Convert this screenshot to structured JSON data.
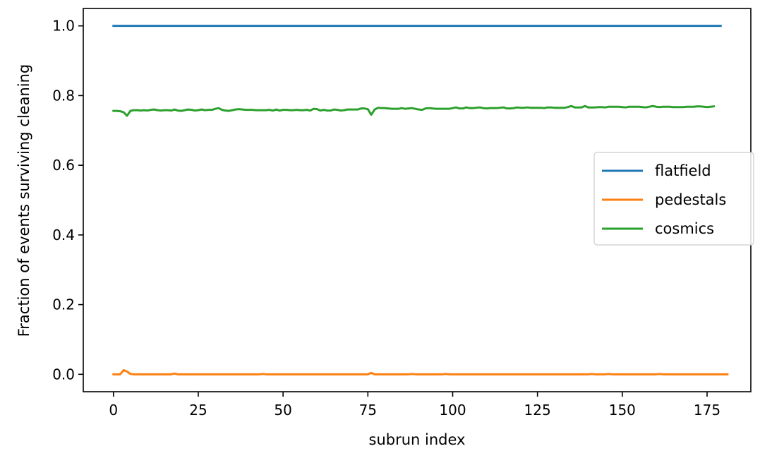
{
  "chart_data": {
    "type": "line",
    "title": "",
    "xlabel": "subrun index",
    "ylabel": "Fraction of events surviving cleaning",
    "xlim": [
      -8.9,
      187.9
    ],
    "ylim": [
      -0.05,
      1.05
    ],
    "xticks": [
      0,
      25,
      50,
      75,
      100,
      125,
      150,
      175
    ],
    "xtick_labels": [
      "0",
      "25",
      "50",
      "75",
      "100",
      "125",
      "150",
      "175"
    ],
    "yticks": [
      0.0,
      0.2,
      0.4,
      0.6,
      0.8,
      1.0
    ],
    "ytick_labels": [
      "0.0",
      "0.2",
      "0.4",
      "0.6",
      "0.8",
      "1.0"
    ],
    "grid": false,
    "legend_position": "center-right",
    "series": [
      {
        "name": "flatfield",
        "color": "#1f77b4",
        "x_start": 0,
        "values": [
          1.0,
          1.0,
          1.0,
          1.0,
          1.0,
          1.0,
          1.0,
          1.0,
          1.0,
          1.0,
          1.0,
          1.0,
          1.0,
          1.0,
          1.0,
          1.0,
          1.0,
          1.0,
          1.0,
          1.0,
          1.0,
          1.0,
          1.0,
          1.0,
          1.0,
          1.0,
          1.0,
          1.0,
          1.0,
          1.0,
          1.0,
          1.0,
          1.0,
          1.0,
          1.0,
          1.0,
          1.0,
          1.0,
          1.0,
          1.0,
          1.0,
          1.0,
          1.0,
          1.0,
          1.0,
          1.0,
          1.0,
          1.0,
          1.0,
          1.0,
          1.0,
          1.0,
          1.0,
          1.0,
          1.0,
          1.0,
          1.0,
          1.0,
          1.0,
          1.0,
          1.0,
          1.0,
          1.0,
          1.0,
          1.0,
          1.0,
          1.0,
          1.0,
          1.0,
          1.0,
          1.0,
          1.0,
          1.0,
          1.0,
          1.0,
          1.0,
          1.0,
          1.0,
          1.0,
          1.0,
          1.0,
          1.0,
          1.0,
          1.0,
          1.0,
          1.0,
          1.0,
          1.0,
          1.0,
          1.0,
          1.0,
          1.0,
          1.0,
          1.0,
          1.0,
          1.0,
          1.0,
          1.0,
          1.0,
          1.0,
          1.0,
          1.0,
          1.0,
          1.0,
          1.0,
          1.0,
          1.0,
          1.0,
          1.0,
          1.0,
          1.0,
          1.0,
          1.0,
          1.0,
          1.0,
          1.0,
          1.0,
          1.0,
          1.0,
          1.0,
          1.0,
          1.0,
          1.0,
          1.0,
          1.0,
          1.0,
          1.0,
          1.0,
          1.0,
          1.0,
          1.0,
          1.0,
          1.0,
          1.0,
          1.0,
          1.0,
          1.0,
          1.0,
          1.0,
          1.0,
          1.0,
          1.0,
          1.0,
          1.0,
          1.0,
          1.0,
          1.0,
          1.0,
          1.0,
          1.0,
          1.0,
          1.0,
          1.0,
          1.0,
          1.0,
          1.0,
          1.0,
          1.0,
          1.0,
          1.0,
          1.0,
          1.0,
          1.0,
          1.0,
          1.0,
          1.0,
          1.0,
          1.0,
          1.0,
          1.0,
          1.0,
          1.0,
          1.0,
          1.0,
          1.0,
          1.0,
          1.0,
          1.0,
          1.0,
          1.0
        ]
      },
      {
        "name": "pedestals",
        "color": "#ff7f0e",
        "x_start": 0,
        "values": [
          0.0,
          0.0,
          0.0,
          0.012,
          0.008,
          0.001,
          0.0,
          0.0,
          0.0,
          0.0,
          0.0,
          0.0,
          0.0,
          0.0,
          0.0,
          0.0,
          0.0,
          0.0,
          0.002,
          0.0,
          0.0,
          0.0,
          0.0,
          0.0,
          0.0,
          0.0,
          0.0,
          0.0,
          0.0,
          0.0,
          0.0,
          0.0,
          0.0,
          0.0,
          0.0,
          0.0,
          0.0,
          0.0,
          0.0,
          0.0,
          0.0,
          0.0,
          0.0,
          0.0,
          0.001,
          0.0,
          0.0,
          0.0,
          0.0,
          0.0,
          0.0,
          0.0,
          0.0,
          0.0,
          0.0,
          0.0,
          0.0,
          0.0,
          0.0,
          0.0,
          0.0,
          0.0,
          0.0,
          0.0,
          0.0,
          0.0,
          0.0,
          0.0,
          0.0,
          0.0,
          0.0,
          0.0,
          0.0,
          0.0,
          0.0,
          0.0,
          0.004,
          0.0,
          0.0,
          0.0,
          0.0,
          0.0,
          0.0,
          0.0,
          0.0,
          0.0,
          0.0,
          0.0,
          0.001,
          0.0,
          0.0,
          0.0,
          0.0,
          0.0,
          0.0,
          0.0,
          0.0,
          0.0,
          0.001,
          0.0,
          0.0,
          0.0,
          0.0,
          0.0,
          0.0,
          0.0,
          0.0,
          0.0,
          0.0,
          0.0,
          0.0,
          0.0,
          0.0,
          0.0,
          0.0,
          0.0,
          0.0,
          0.0,
          0.0,
          0.0,
          0.0,
          0.0,
          0.0,
          0.0,
          0.0,
          0.0,
          0.0,
          0.0,
          0.0,
          0.0,
          0.0,
          0.0,
          0.0,
          0.0,
          0.0,
          0.0,
          0.0,
          0.0,
          0.0,
          0.0,
          0.0,
          0.001,
          0.0,
          0.0,
          0.0,
          0.0,
          0.001,
          0.0,
          0.0,
          0.0,
          0.0,
          0.0,
          0.0,
          0.0,
          0.0,
          0.0,
          0.0,
          0.0,
          0.0,
          0.0,
          0.0,
          0.001,
          0.0,
          0.0,
          0.0,
          0.0,
          0.0,
          0.0,
          0.0,
          0.0,
          0.0,
          0.0,
          0.0,
          0.0,
          0.0,
          0.0,
          0.0,
          0.0,
          0.0,
          0.0,
          0.0,
          0.0
        ]
      },
      {
        "name": "cosmics",
        "color": "#2ca02c",
        "x_start": 0,
        "values": [
          0.756,
          0.756,
          0.755,
          0.752,
          0.742,
          0.756,
          0.758,
          0.758,
          0.757,
          0.758,
          0.757,
          0.759,
          0.76,
          0.758,
          0.757,
          0.758,
          0.758,
          0.757,
          0.76,
          0.757,
          0.756,
          0.758,
          0.76,
          0.759,
          0.757,
          0.758,
          0.76,
          0.758,
          0.759,
          0.759,
          0.762,
          0.764,
          0.759,
          0.757,
          0.756,
          0.758,
          0.76,
          0.761,
          0.76,
          0.759,
          0.759,
          0.759,
          0.758,
          0.758,
          0.758,
          0.758,
          0.759,
          0.757,
          0.76,
          0.757,
          0.759,
          0.759,
          0.758,
          0.758,
          0.759,
          0.758,
          0.758,
          0.759,
          0.757,
          0.762,
          0.761,
          0.757,
          0.759,
          0.757,
          0.757,
          0.76,
          0.759,
          0.757,
          0.758,
          0.76,
          0.76,
          0.76,
          0.76,
          0.763,
          0.763,
          0.761,
          0.745,
          0.76,
          0.765,
          0.764,
          0.764,
          0.763,
          0.762,
          0.762,
          0.762,
          0.764,
          0.762,
          0.763,
          0.764,
          0.762,
          0.76,
          0.759,
          0.763,
          0.764,
          0.763,
          0.762,
          0.762,
          0.762,
          0.762,
          0.762,
          0.764,
          0.766,
          0.763,
          0.763,
          0.766,
          0.764,
          0.764,
          0.765,
          0.766,
          0.764,
          0.763,
          0.764,
          0.764,
          0.764,
          0.765,
          0.766,
          0.763,
          0.763,
          0.764,
          0.766,
          0.765,
          0.765,
          0.766,
          0.765,
          0.765,
          0.765,
          0.765,
          0.764,
          0.766,
          0.766,
          0.765,
          0.765,
          0.765,
          0.765,
          0.767,
          0.77,
          0.766,
          0.766,
          0.766,
          0.77,
          0.766,
          0.766,
          0.766,
          0.767,
          0.767,
          0.766,
          0.768,
          0.768,
          0.768,
          0.768,
          0.767,
          0.766,
          0.768,
          0.768,
          0.768,
          0.768,
          0.767,
          0.766,
          0.768,
          0.77,
          0.768,
          0.767,
          0.768,
          0.768,
          0.768,
          0.767,
          0.767,
          0.767,
          0.767,
          0.768,
          0.768,
          0.768,
          0.769,
          0.769,
          0.768,
          0.767,
          0.768,
          0.769
        ]
      }
    ]
  }
}
